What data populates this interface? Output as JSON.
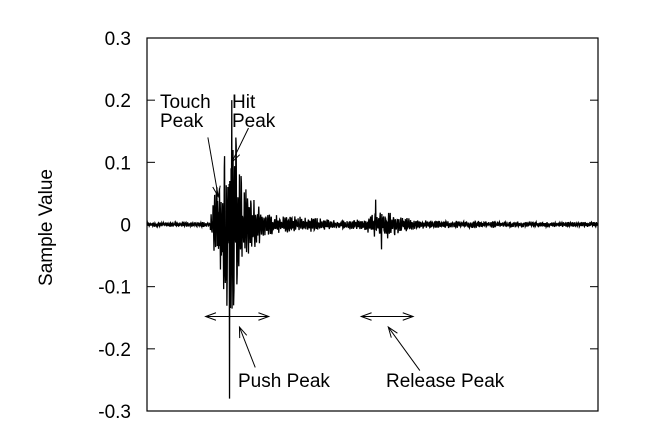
{
  "chart_data": {
    "type": "line",
    "title": "",
    "xlabel": "",
    "ylabel": "Sample Value",
    "ylim": [
      -0.3,
      0.3
    ],
    "yticks": [
      "0.3",
      "0.2",
      "0.1",
      "0",
      "-0.1",
      "-0.2",
      "-0.3"
    ],
    "ytick_values": [
      0.3,
      0.2,
      0.1,
      0,
      -0.1,
      -0.2,
      -0.3
    ],
    "xlim": [
      0,
      1
    ],
    "x_ticks_shown": false,
    "grid": false,
    "legend": "none",
    "line_color": "#000000",
    "waveform": {
      "description_free_envelope": [
        {
          "x": 0.0,
          "amp": 0.004
        },
        {
          "x": 0.14,
          "amp": 0.004
        },
        {
          "x": 0.145,
          "amp": 0.04
        },
        {
          "x": 0.16,
          "amp": 0.08
        },
        {
          "x": 0.175,
          "amp": 0.12
        },
        {
          "x": 0.185,
          "amp": 0.18
        },
        {
          "x": 0.2,
          "amp": 0.12
        },
        {
          "x": 0.22,
          "amp": 0.06
        },
        {
          "x": 0.26,
          "amp": 0.02
        },
        {
          "x": 0.3,
          "amp": 0.015
        },
        {
          "x": 0.36,
          "amp": 0.012
        },
        {
          "x": 0.42,
          "amp": 0.008
        },
        {
          "x": 0.48,
          "amp": 0.008
        },
        {
          "x": 0.5,
          "amp": 0.02
        },
        {
          "x": 0.53,
          "amp": 0.025
        },
        {
          "x": 0.56,
          "amp": 0.015
        },
        {
          "x": 0.6,
          "amp": 0.007
        },
        {
          "x": 0.8,
          "amp": 0.005
        },
        {
          "x": 1.0,
          "amp": 0.004
        }
      ],
      "spikes": [
        {
          "x": 0.183,
          "y": 0.25
        },
        {
          "x": 0.183,
          "y": -0.28
        },
        {
          "x": 0.188,
          "y": 0.2
        },
        {
          "x": 0.192,
          "y": -0.13
        },
        {
          "x": 0.197,
          "y": 0.14
        },
        {
          "x": 0.172,
          "y": 0.11
        },
        {
          "x": 0.165,
          "y": -0.05
        },
        {
          "x": 0.175,
          "y": -0.09
        },
        {
          "x": 0.2,
          "y": -0.08
        },
        {
          "x": 0.155,
          "y": 0.06
        },
        {
          "x": 0.507,
          "y": 0.04
        },
        {
          "x": 0.52,
          "y": -0.04
        }
      ]
    },
    "annotations": [
      {
        "id": "touch",
        "lines": [
          "Touch",
          "Peak"
        ],
        "arrow_from": [
          0.135,
          0.14
        ],
        "arrow_to": [
          0.158,
          0.045
        ]
      },
      {
        "id": "hit",
        "lines": [
          "Hit",
          "Peak"
        ],
        "arrow_from": [
          0.225,
          0.155
        ],
        "arrow_to": [
          0.188,
          0.1
        ]
      },
      {
        "id": "push",
        "text": "Push Peak",
        "arrow_from": [
          0.24,
          -0.23
        ],
        "arrow_to": [
          0.205,
          -0.165
        ]
      },
      {
        "id": "release",
        "text": "Release Peak",
        "arrow_from": [
          0.605,
          -0.235
        ],
        "arrow_to": [
          0.535,
          -0.165
        ]
      }
    ],
    "ranges": [
      {
        "id": "push-range",
        "x_start": 0.13,
        "x_end": 0.27,
        "y": -0.148
      },
      {
        "id": "release-range",
        "x_start": 0.475,
        "x_end": 0.59,
        "y": -0.148
      }
    ]
  }
}
